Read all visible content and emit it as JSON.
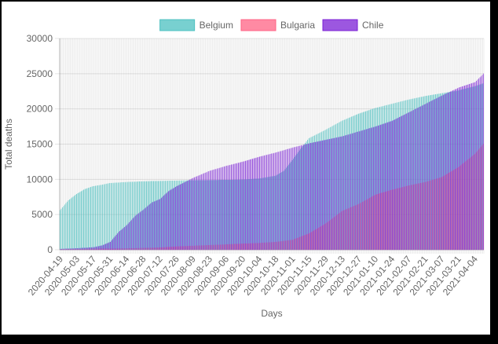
{
  "chart_data": {
    "type": "bar",
    "stacked": false,
    "ylim": [
      0,
      30000
    ],
    "yticks": [
      "0",
      "5000",
      "10000",
      "15000",
      "20000",
      "25000",
      "30000"
    ],
    "ylabel": "Total deaths",
    "xlabel": "Days",
    "legend": {
      "placement": "top-center"
    },
    "grid": true,
    "x_start": "2020-04-19",
    "x_end": "2021-04-11",
    "x_tick_labels": [
      "2020-04-19",
      "2020-05-03",
      "2020-05-17",
      "2020-05-31",
      "2020-06-14",
      "2020-06-28",
      "2020-07-12",
      "2020-07-26",
      "2020-08-09",
      "2020-08-23",
      "2020-09-06",
      "2020-09-20",
      "2020-10-04",
      "2020-10-18",
      "2020-11-01",
      "2020-11-15",
      "2020-11-29",
      "2020-12-13",
      "2020-12-27",
      "2021-01-10",
      "2021-01-24",
      "2021-02-07",
      "2021-02-21",
      "2021-03-07",
      "2021-03-21",
      "2021-04-04"
    ],
    "series": [
      {
        "name": "Belgium",
        "color": "#4bc0c0",
        "points": [
          [
            "2020-04-19",
            5600
          ],
          [
            "2020-04-26",
            7000
          ],
          [
            "2020-05-03",
            7900
          ],
          [
            "2020-05-10",
            8600
          ],
          [
            "2020-05-17",
            9000
          ],
          [
            "2020-05-24",
            9200
          ],
          [
            "2020-05-31",
            9450
          ],
          [
            "2020-06-14",
            9600
          ],
          [
            "2020-06-28",
            9700
          ],
          [
            "2020-07-12",
            9750
          ],
          [
            "2020-08-09",
            9850
          ],
          [
            "2020-09-06",
            9900
          ],
          [
            "2020-09-20",
            9950
          ],
          [
            "2020-10-04",
            10100
          ],
          [
            "2020-10-18",
            10500
          ],
          [
            "2020-10-25",
            11200
          ],
          [
            "2020-11-01",
            12700
          ],
          [
            "2020-11-08",
            14300
          ],
          [
            "2020-11-15",
            15800
          ],
          [
            "2020-11-29",
            17000
          ],
          [
            "2020-12-13",
            18300
          ],
          [
            "2020-12-27",
            19300
          ],
          [
            "2021-01-10",
            20100
          ],
          [
            "2021-01-24",
            20700
          ],
          [
            "2021-02-07",
            21300
          ],
          [
            "2021-02-21",
            21800
          ],
          [
            "2021-03-07",
            22200
          ],
          [
            "2021-03-21",
            22600
          ],
          [
            "2021-04-04",
            23200
          ],
          [
            "2021-04-11",
            23600
          ]
        ]
      },
      {
        "name": "Bulgaria",
        "color": "#ff6384",
        "points": [
          [
            "2020-04-19",
            50
          ],
          [
            "2020-05-17",
            120
          ],
          [
            "2020-06-14",
            180
          ],
          [
            "2020-07-12",
            300
          ],
          [
            "2020-07-26",
            450
          ],
          [
            "2020-08-23",
            650
          ],
          [
            "2020-09-20",
            850
          ],
          [
            "2020-10-04",
            950
          ],
          [
            "2020-10-18",
            1100
          ],
          [
            "2020-11-01",
            1400
          ],
          [
            "2020-11-15",
            2300
          ],
          [
            "2020-11-29",
            3700
          ],
          [
            "2020-12-13",
            5500
          ],
          [
            "2020-12-27",
            6500
          ],
          [
            "2021-01-10",
            7800
          ],
          [
            "2021-01-24",
            8500
          ],
          [
            "2021-02-07",
            9100
          ],
          [
            "2021-02-21",
            9600
          ],
          [
            "2021-03-07",
            10300
          ],
          [
            "2021-03-21",
            11700
          ],
          [
            "2021-04-04",
            13600
          ],
          [
            "2021-04-11",
            15000
          ]
        ]
      },
      {
        "name": "Chile",
        "color": "#7b1fd6",
        "points": [
          [
            "2020-04-19",
            100
          ],
          [
            "2020-05-03",
            200
          ],
          [
            "2020-05-17",
            350
          ],
          [
            "2020-05-24",
            600
          ],
          [
            "2020-05-31",
            1100
          ],
          [
            "2020-06-07",
            2500
          ],
          [
            "2020-06-14",
            3500
          ],
          [
            "2020-06-21",
            4800
          ],
          [
            "2020-06-28",
            5700
          ],
          [
            "2020-07-05",
            6700
          ],
          [
            "2020-07-12",
            7200
          ],
          [
            "2020-07-19",
            8300
          ],
          [
            "2020-07-26",
            9000
          ],
          [
            "2020-08-09",
            10200
          ],
          [
            "2020-08-23",
            11200
          ],
          [
            "2020-09-06",
            11900
          ],
          [
            "2020-09-20",
            12500
          ],
          [
            "2020-10-04",
            13200
          ],
          [
            "2020-10-18",
            13800
          ],
          [
            "2020-11-01",
            14500
          ],
          [
            "2020-11-15",
            15100
          ],
          [
            "2020-11-29",
            15600
          ],
          [
            "2020-12-13",
            16100
          ],
          [
            "2020-12-27",
            16800
          ],
          [
            "2021-01-10",
            17500
          ],
          [
            "2021-01-24",
            18300
          ],
          [
            "2021-02-07",
            19500
          ],
          [
            "2021-02-21",
            20700
          ],
          [
            "2021-03-07",
            21900
          ],
          [
            "2021-03-21",
            23000
          ],
          [
            "2021-04-04",
            23800
          ],
          [
            "2021-04-11",
            25000
          ]
        ]
      }
    ]
  }
}
